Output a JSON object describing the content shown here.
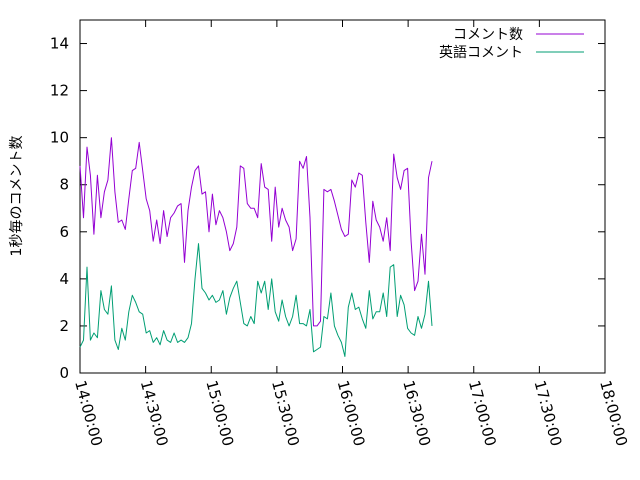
{
  "chart_data": {
    "type": "line",
    "title": "",
    "xlabel": "",
    "ylabel": "1秒毎のコメント数",
    "ylim": [
      0,
      15
    ],
    "yticks": [
      0,
      2,
      4,
      6,
      8,
      10,
      12,
      14
    ],
    "xlim": [
      "14:00:00",
      "18:00:00"
    ],
    "xticks": [
      "14:00:00",
      "14:30:00",
      "15:00:00",
      "15:30:00",
      "16:00:00",
      "16:30:00",
      "17:00:00",
      "17:30:00",
      "18:00:00"
    ],
    "grid": false,
    "legend_position": "top-right",
    "series": [
      {
        "name": "コメント数",
        "color": "#9400d3",
        "points": [
          [
            "14:00:00",
            8.8
          ],
          [
            "14:01:35",
            6.6
          ],
          [
            "14:03:11",
            9.6
          ],
          [
            "14:04:46",
            8.4
          ],
          [
            "14:06:22",
            5.9
          ],
          [
            "14:07:58",
            8.4
          ],
          [
            "14:09:33",
            6.6
          ],
          [
            "14:11:09",
            7.7
          ],
          [
            "14:12:44",
            8.2
          ],
          [
            "14:14:20",
            10.0
          ],
          [
            "14:15:56",
            7.7
          ],
          [
            "14:17:31",
            6.4
          ],
          [
            "14:19:07",
            6.5
          ],
          [
            "14:20:42",
            6.1
          ],
          [
            "14:22:18",
            7.4
          ],
          [
            "14:23:54",
            8.6
          ],
          [
            "14:25:29",
            8.7
          ],
          [
            "14:27:05",
            9.8
          ],
          [
            "14:28:40",
            8.6
          ],
          [
            "14:30:16",
            7.4
          ],
          [
            "14:31:52",
            6.9
          ],
          [
            "14:33:27",
            5.6
          ],
          [
            "14:35:03",
            6.5
          ],
          [
            "14:36:38",
            5.5
          ],
          [
            "14:38:14",
            6.9
          ],
          [
            "14:39:49",
            5.8
          ],
          [
            "14:41:25",
            6.6
          ],
          [
            "14:43:01",
            6.8
          ],
          [
            "14:44:36",
            7.1
          ],
          [
            "14:46:12",
            7.2
          ],
          [
            "14:47:47",
            4.7
          ],
          [
            "14:49:23",
            6.9
          ],
          [
            "14:50:59",
            7.9
          ],
          [
            "14:52:34",
            8.6
          ],
          [
            "14:54:10",
            8.8
          ],
          [
            "14:55:45",
            7.6
          ],
          [
            "14:57:21",
            7.7
          ],
          [
            "14:58:57",
            6.0
          ],
          [
            "15:00:32",
            7.6
          ],
          [
            "15:02:08",
            6.3
          ],
          [
            "15:03:43",
            6.9
          ],
          [
            "15:05:19",
            6.6
          ],
          [
            "15:06:55",
            6.0
          ],
          [
            "15:08:30",
            5.2
          ],
          [
            "15:10:06",
            5.5
          ],
          [
            "15:11:41",
            6.2
          ],
          [
            "15:13:17",
            8.8
          ],
          [
            "15:14:53",
            8.7
          ],
          [
            "15:16:28",
            7.2
          ],
          [
            "15:18:04",
            7.0
          ],
          [
            "15:19:39",
            7.0
          ],
          [
            "15:21:15",
            6.6
          ],
          [
            "15:22:51",
            8.9
          ],
          [
            "15:24:26",
            7.9
          ],
          [
            "15:26:02",
            7.8
          ],
          [
            "15:27:37",
            5.6
          ],
          [
            "15:29:13",
            7.9
          ],
          [
            "15:30:49",
            6.2
          ],
          [
            "15:32:24",
            7.0
          ],
          [
            "15:34:00",
            6.5
          ],
          [
            "15:35:35",
            6.2
          ],
          [
            "15:37:11",
            5.2
          ],
          [
            "15:38:46",
            5.7
          ],
          [
            "15:40:22",
            9.0
          ],
          [
            "15:41:58",
            8.7
          ],
          [
            "15:43:33",
            9.2
          ],
          [
            "15:45:09",
            6.6
          ],
          [
            "15:46:44",
            2.0
          ],
          [
            "15:48:20",
            2.0
          ],
          [
            "15:49:56",
            2.2
          ],
          [
            "15:51:31",
            7.8
          ],
          [
            "15:53:07",
            7.7
          ],
          [
            "15:54:42",
            7.8
          ],
          [
            "15:56:18",
            7.3
          ],
          [
            "15:57:54",
            6.7
          ],
          [
            "15:59:29",
            6.1
          ],
          [
            "16:01:05",
            5.8
          ],
          [
            "16:02:40",
            5.9
          ],
          [
            "16:04:16",
            8.2
          ],
          [
            "16:05:52",
            7.9
          ],
          [
            "16:07:27",
            8.5
          ],
          [
            "16:09:03",
            8.4
          ],
          [
            "16:10:38",
            6.4
          ],
          [
            "16:12:14",
            4.7
          ],
          [
            "16:13:50",
            7.3
          ],
          [
            "16:15:25",
            6.5
          ],
          [
            "16:17:01",
            6.2
          ],
          [
            "16:18:36",
            5.6
          ],
          [
            "16:20:12",
            6.6
          ],
          [
            "16:21:48",
            5.2
          ],
          [
            "16:23:23",
            9.3
          ],
          [
            "16:24:59",
            8.3
          ],
          [
            "16:26:34",
            7.8
          ],
          [
            "16:28:10",
            8.6
          ],
          [
            "16:29:46",
            8.7
          ],
          [
            "16:31:21",
            5.6
          ],
          [
            "16:32:57",
            3.5
          ],
          [
            "16:34:32",
            3.9
          ],
          [
            "16:36:08",
            5.9
          ],
          [
            "16:37:43",
            4.2
          ],
          [
            "16:39:19",
            8.3
          ],
          [
            "16:40:55",
            9.0
          ]
        ]
      },
      {
        "name": "英語コメント",
        "color": "#009e73",
        "points": [
          [
            "14:00:00",
            1.1
          ],
          [
            "14:01:35",
            1.4
          ],
          [
            "14:03:11",
            4.5
          ],
          [
            "14:04:46",
            1.4
          ],
          [
            "14:06:22",
            1.7
          ],
          [
            "14:07:58",
            1.5
          ],
          [
            "14:09:33",
            3.5
          ],
          [
            "14:11:09",
            2.7
          ],
          [
            "14:12:44",
            2.5
          ],
          [
            "14:14:20",
            3.7
          ],
          [
            "14:15:56",
            1.4
          ],
          [
            "14:17:31",
            1.0
          ],
          [
            "14:19:07",
            1.9
          ],
          [
            "14:20:42",
            1.4
          ],
          [
            "14:22:18",
            2.6
          ],
          [
            "14:23:54",
            3.3
          ],
          [
            "14:25:29",
            3.0
          ],
          [
            "14:27:05",
            2.6
          ],
          [
            "14:28:40",
            2.5
          ],
          [
            "14:30:16",
            1.7
          ],
          [
            "14:31:52",
            1.8
          ],
          [
            "14:33:27",
            1.3
          ],
          [
            "14:35:03",
            1.5
          ],
          [
            "14:36:38",
            1.2
          ],
          [
            "14:38:14",
            1.8
          ],
          [
            "14:39:49",
            1.4
          ],
          [
            "14:41:25",
            1.3
          ],
          [
            "14:43:01",
            1.7
          ],
          [
            "14:44:36",
            1.3
          ],
          [
            "14:46:12",
            1.4
          ],
          [
            "14:47:47",
            1.3
          ],
          [
            "14:49:23",
            1.5
          ],
          [
            "14:50:59",
            2.1
          ],
          [
            "14:52:34",
            4.0
          ],
          [
            "14:54:10",
            5.5
          ],
          [
            "14:55:45",
            3.6
          ],
          [
            "14:57:21",
            3.4
          ],
          [
            "14:58:57",
            3.1
          ],
          [
            "15:00:32",
            3.3
          ],
          [
            "15:02:08",
            3.0
          ],
          [
            "15:03:43",
            3.1
          ],
          [
            "15:05:19",
            3.5
          ],
          [
            "15:06:55",
            2.5
          ],
          [
            "15:08:30",
            3.2
          ],
          [
            "15:10:06",
            3.6
          ],
          [
            "15:11:41",
            3.9
          ],
          [
            "15:13:17",
            3.0
          ],
          [
            "15:14:53",
            2.1
          ],
          [
            "15:16:28",
            2.0
          ],
          [
            "15:18:04",
            2.4
          ],
          [
            "15:19:39",
            2.1
          ],
          [
            "15:21:15",
            3.9
          ],
          [
            "15:22:51",
            3.4
          ],
          [
            "15:24:26",
            3.9
          ],
          [
            "15:26:02",
            2.7
          ],
          [
            "15:27:37",
            4.0
          ],
          [
            "15:29:13",
            2.6
          ],
          [
            "15:30:49",
            2.2
          ],
          [
            "15:32:24",
            3.1
          ],
          [
            "15:34:00",
            2.4
          ],
          [
            "15:35:35",
            2.0
          ],
          [
            "15:37:11",
            2.4
          ],
          [
            "15:38:46",
            3.3
          ],
          [
            "15:40:22",
            2.1
          ],
          [
            "15:41:58",
            2.1
          ],
          [
            "15:43:33",
            2.0
          ],
          [
            "15:45:09",
            2.7
          ],
          [
            "15:46:44",
            0.9
          ],
          [
            "15:48:20",
            1.0
          ],
          [
            "15:49:56",
            1.1
          ],
          [
            "15:51:31",
            2.4
          ],
          [
            "15:53:07",
            2.3
          ],
          [
            "15:54:42",
            3.4
          ],
          [
            "15:56:18",
            2.0
          ],
          [
            "15:57:54",
            1.6
          ],
          [
            "15:59:29",
            1.3
          ],
          [
            "16:01:05",
            0.7
          ],
          [
            "16:02:40",
            2.8
          ],
          [
            "16:04:16",
            3.4
          ],
          [
            "16:05:52",
            2.7
          ],
          [
            "16:07:27",
            2.8
          ],
          [
            "16:09:03",
            2.3
          ],
          [
            "16:10:38",
            1.9
          ],
          [
            "16:12:14",
            3.5
          ],
          [
            "16:13:50",
            2.3
          ],
          [
            "16:15:25",
            2.6
          ],
          [
            "16:17:01",
            2.6
          ],
          [
            "16:18:36",
            3.4
          ],
          [
            "16:20:12",
            2.4
          ],
          [
            "16:21:48",
            4.5
          ],
          [
            "16:23:23",
            4.6
          ],
          [
            "16:24:59",
            2.4
          ],
          [
            "16:26:34",
            3.3
          ],
          [
            "16:28:10",
            2.9
          ],
          [
            "16:29:46",
            1.9
          ],
          [
            "16:31:21",
            1.7
          ],
          [
            "16:32:57",
            1.6
          ],
          [
            "16:34:32",
            2.4
          ],
          [
            "16:36:08",
            1.9
          ],
          [
            "16:37:43",
            2.5
          ],
          [
            "16:39:19",
            3.9
          ],
          [
            "16:40:55",
            2.0
          ]
        ]
      }
    ]
  }
}
